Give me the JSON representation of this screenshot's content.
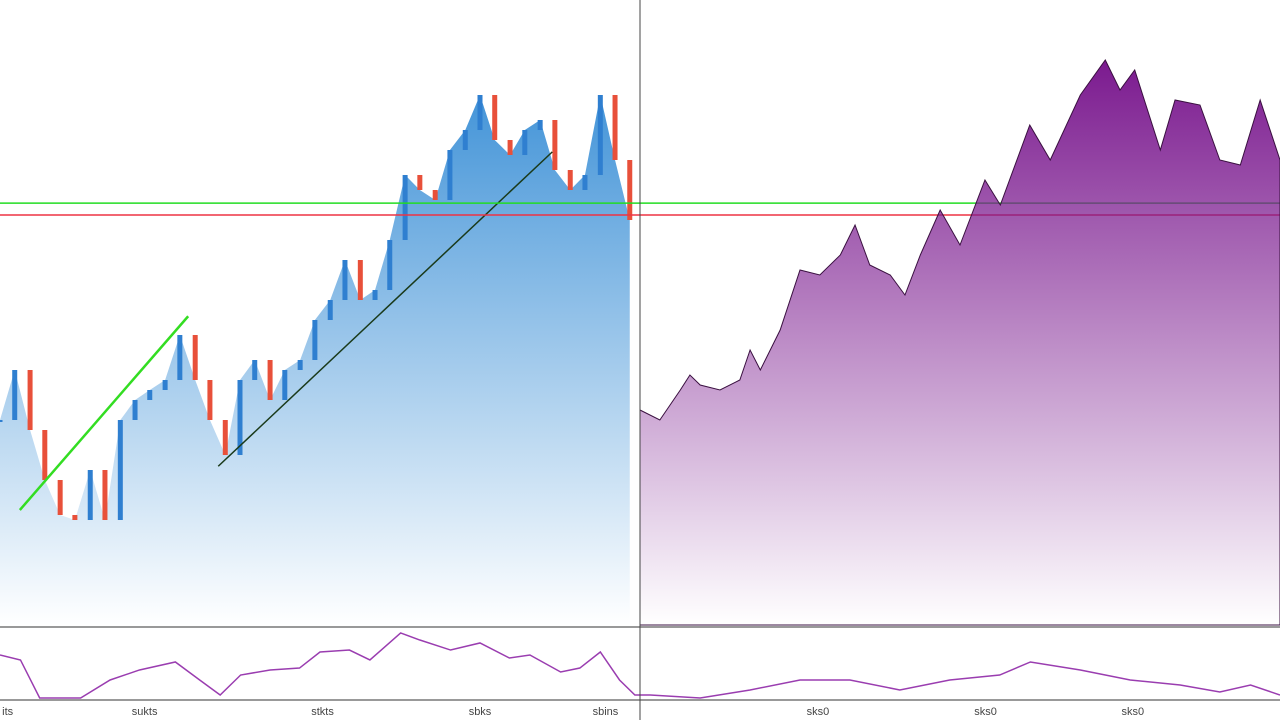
{
  "chart_data": [
    {
      "type": "candlestick",
      "color": "#3a8fd6",
      "up_color": "#2f7fd0",
      "down_color": "#e8503a",
      "xlim": [
        0,
        100
      ],
      "ylim": [
        0,
        100
      ],
      "x": [
        0,
        2.3,
        4.7,
        7,
        9.4,
        11.7,
        14.1,
        16.4,
        18.8,
        21.1,
        23.4,
        25.8,
        28.1,
        30.5,
        32.8,
        35.2,
        37.5,
        39.8,
        42.2,
        44.5,
        46.9,
        49.2,
        51.6,
        53.9,
        56.3,
        58.6,
        60.9,
        63.3,
        65.6,
        68,
        70.3,
        72.7,
        75,
        77.3,
        79.7,
        82,
        84.4,
        86.7,
        89.1,
        91.4,
        93.8,
        96.1,
        98.4
      ],
      "values": [
        32.8,
        40.8,
        31.2,
        23.2,
        17.6,
        16.8,
        24.8,
        16.8,
        32.8,
        36,
        37.6,
        39.2,
        46.4,
        39.2,
        32.8,
        27.2,
        39.2,
        42.4,
        36,
        40.8,
        42.4,
        48.8,
        52,
        58.4,
        52,
        53.6,
        61.6,
        72,
        69.6,
        68,
        76,
        79.2,
        84.8,
        77.6,
        75.2,
        79.2,
        80.8,
        72.8,
        69.6,
        72,
        84.8,
        74.4,
        64.8
      ],
      "hlines": [
        {
          "value": 67.5,
          "color": "#22dd22"
        },
        {
          "value": 65.6,
          "color": "#ee3344"
        }
      ],
      "trendlines": [
        {
          "x": [
            3.1,
            29.4
          ],
          "y": [
            18.4,
            49.4
          ],
          "color": "#33dd22"
        },
        {
          "x": [
            34.1,
            86.3
          ],
          "y": [
            25.4,
            75.7
          ],
          "color": "#1a3a1a"
        }
      ]
    },
    {
      "type": "area",
      "color": "#7b1a8f",
      "xlim": [
        0,
        100
      ],
      "ylim": [
        0,
        100
      ],
      "x": [
        0,
        3.1,
        6.3,
        7.8,
        9.4,
        12.5,
        15.6,
        17.2,
        18.8,
        21.9,
        25,
        28.1,
        31.3,
        33.6,
        35.9,
        39.1,
        41.4,
        43.8,
        46.9,
        50,
        53.9,
        56.3,
        60.9,
        64.1,
        68.8,
        72.7,
        75,
        77.3,
        81.3,
        83.6,
        87.5,
        90.6,
        93.8,
        96.9,
        100
      ],
      "values": [
        34.4,
        32.8,
        37.6,
        40,
        38.4,
        37.6,
        39.2,
        44,
        40.8,
        47.2,
        56.8,
        56,
        59.2,
        64,
        57.6,
        56,
        52.8,
        59.2,
        66.4,
        60.8,
        71.2,
        67.2,
        80,
        74.4,
        84.8,
        90.4,
        85.6,
        88.8,
        76,
        84,
        83.2,
        74.4,
        73.6,
        84,
        74.4
      ]
    },
    {
      "type": "line",
      "color": "#9a3db0",
      "xlim": [
        0,
        100
      ],
      "ylim": [
        0,
        100
      ],
      "x": [
        0,
        1.6,
        3.1,
        6.3,
        8.6,
        10.9,
        13.7,
        15.6,
        17.2,
        18.8,
        21.1,
        23.4,
        25,
        27.3,
        28.9,
        31.3,
        32.8,
        35.2,
        37.5,
        39.8,
        41.4,
        43.8,
        45.3,
        46.9,
        48.4,
        49.6,
        50.8,
        54.7,
        58.6,
        62.5,
        66.4,
        70.3,
        74.2,
        78.1,
        80.5,
        84.4,
        88.3,
        92.2,
        95.3,
        97.7,
        100
      ],
      "values": [
        62.5,
        55.6,
        2.8,
        2.8,
        27.8,
        41.7,
        52.8,
        27.8,
        6.9,
        34.7,
        41.7,
        44.4,
        66.7,
        69.4,
        55.6,
        93.1,
        83.3,
        69.4,
        79.2,
        58.3,
        62.5,
        38.9,
        44.4,
        66.7,
        27.8,
        6.9,
        6.9,
        2.8,
        13.9,
        27.8,
        27.8,
        13.9,
        27.8,
        34.7,
        52.8,
        41.7,
        27.8,
        20.8,
        11.1,
        20.8,
        6.9
      ],
      "xticks": [
        {
          "value": 0.6,
          "label": "its"
        },
        {
          "value": 11.3,
          "label": "sukts"
        },
        {
          "value": 25.2,
          "label": "stkts"
        },
        {
          "value": 37.5,
          "label": "sbks"
        },
        {
          "value": 47.3,
          "label": "sbins"
        },
        {
          "value": 63.9,
          "label": "sks0"
        },
        {
          "value": 77,
          "label": "sks0"
        },
        {
          "value": 88.5,
          "label": "sks0"
        }
      ]
    }
  ]
}
